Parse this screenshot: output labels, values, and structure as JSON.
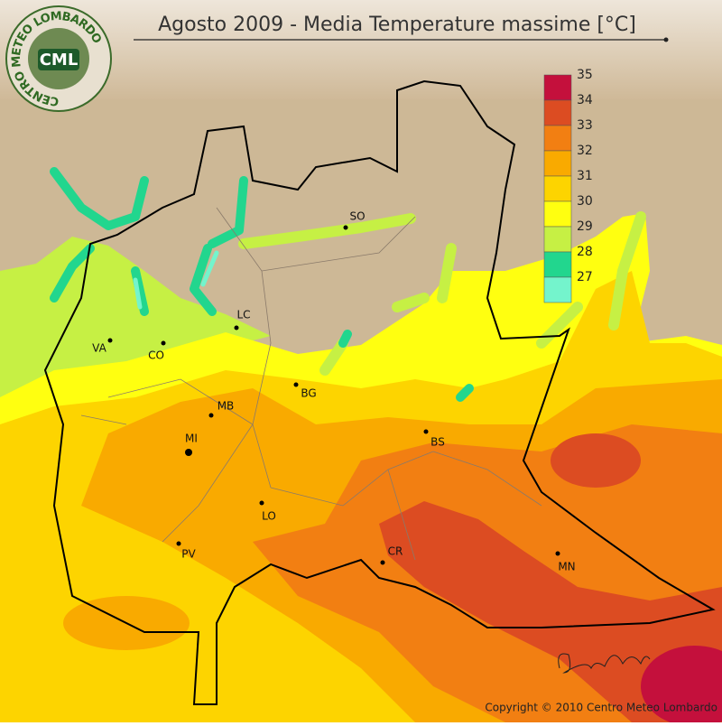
{
  "header": {
    "title": "Agosto 2009 - Media Temperature massime [°C]"
  },
  "logo": {
    "short": "CML",
    "ring": "CENTRO METEO LOMBARDO"
  },
  "legend": {
    "ticks": [
      35,
      34,
      33,
      32,
      31,
      30,
      29,
      28,
      27
    ],
    "colors": [
      "#c4103c",
      "#dc4c22",
      "#f27f12",
      "#f9aa00",
      "#fdd400",
      "#ffff10",
      "#c6f044",
      "#22d68e",
      "#74f4cc"
    ]
  },
  "cities": [
    "SO",
    "LC",
    "VA",
    "CO",
    "BG",
    "MB",
    "MI",
    "BS",
    "LO",
    "PV",
    "CR",
    "MN"
  ],
  "footer": {
    "copyright": "Copyright © 2010 Centro Meteo Lombardo"
  }
}
